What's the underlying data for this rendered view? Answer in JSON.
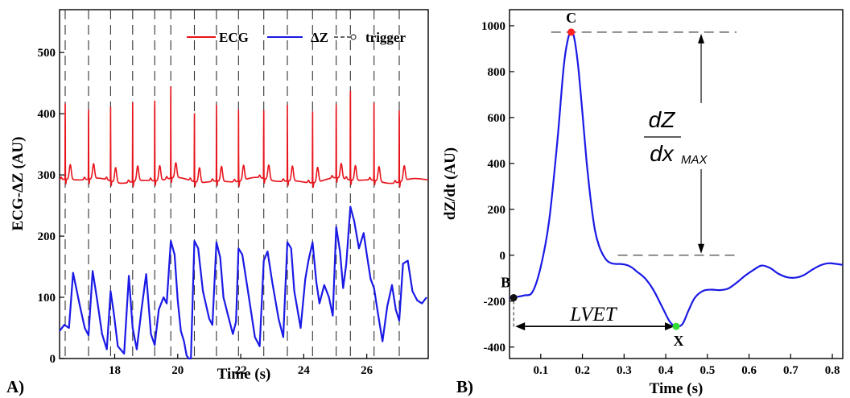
{
  "panels": {
    "a": "A)",
    "b": "B)"
  },
  "chart_data": [
    {
      "type": "line",
      "xlabel": "Time (s)",
      "ylabel": "ECG-ΔZ (AU)",
      "xlim": [
        16.25,
        27.95
      ],
      "ylim": [
        0,
        570
      ],
      "xticks": [
        18,
        20,
        22,
        24,
        26
      ],
      "yticks": [
        0,
        100,
        200,
        300,
        400,
        500
      ],
      "grid": false,
      "legend": {
        "placement": "top-right",
        "entries": [
          "ECG",
          "ΔZ",
          "trigger"
        ]
      },
      "colors": {
        "ECG": "#e8141c",
        "dZ": "#1a1ae6",
        "trigger": "#333333"
      },
      "triggers": [
        16.43,
        17.17,
        17.87,
        18.57,
        19.27,
        19.78,
        20.53,
        21.23,
        21.93,
        22.73,
        23.48,
        24.28,
        25.03,
        25.48,
        26.23,
        27.03
      ],
      "ecg_beats": [
        {
          "t": 16.43,
          "peak": 417
        },
        {
          "t": 17.17,
          "peak": 412
        },
        {
          "t": 17.87,
          "peak": 415
        },
        {
          "t": 18.57,
          "peak": 428
        },
        {
          "t": 19.27,
          "peak": 430
        },
        {
          "t": 19.78,
          "peak": 450
        },
        {
          "t": 20.53,
          "peak": 410
        },
        {
          "t": 21.23,
          "peak": 418
        },
        {
          "t": 21.93,
          "peak": 415
        },
        {
          "t": 22.73,
          "peak": 405
        },
        {
          "t": 23.48,
          "peak": 418
        },
        {
          "t": 24.28,
          "peak": 415
        },
        {
          "t": 25.03,
          "peak": 418
        },
        {
          "t": 25.48,
          "peak": 445
        },
        {
          "t": 26.23,
          "peak": 425
        },
        {
          "t": 27.03,
          "peak": 415
        }
      ],
      "series": [
        {
          "name": "ΔZ",
          "x": [
            16.25,
            16.4,
            16.55,
            16.68,
            16.9,
            17.05,
            17.17,
            17.3,
            17.43,
            17.6,
            17.75,
            17.87,
            17.97,
            18.1,
            18.3,
            18.45,
            18.57,
            18.7,
            18.85,
            19.0,
            19.15,
            19.27,
            19.4,
            19.55,
            19.65,
            19.78,
            19.9,
            20.0,
            20.1,
            20.2,
            20.28,
            20.35,
            20.42,
            20.53,
            20.65,
            20.8,
            21.0,
            21.1,
            21.23,
            21.35,
            21.45,
            21.6,
            21.75,
            21.85,
            21.93,
            22.05,
            22.2,
            22.45,
            22.6,
            22.73,
            22.85,
            23.0,
            23.2,
            23.35,
            23.48,
            23.6,
            23.7,
            23.9,
            24.05,
            24.15,
            24.28,
            24.4,
            24.5,
            24.65,
            24.8,
            24.92,
            25.03,
            25.15,
            25.25,
            25.35,
            25.48,
            25.6,
            25.75,
            25.9,
            26.0,
            26.12,
            26.23,
            26.35,
            26.5,
            26.65,
            26.8,
            26.92,
            27.03,
            27.15,
            27.3,
            27.45,
            27.6,
            27.75,
            27.9
          ],
          "y": [
            45,
            55,
            50,
            140,
            85,
            50,
            38,
            143,
            100,
            40,
            15,
            110,
            75,
            20,
            8,
            135,
            50,
            15,
            80,
            138,
            40,
            22,
            80,
            100,
            90,
            192,
            170,
            95,
            45,
            28,
            5,
            0,
            0,
            192,
            180,
            110,
            65,
            55,
            190,
            165,
            100,
            70,
            40,
            60,
            180,
            170,
            120,
            35,
            20,
            160,
            175,
            125,
            65,
            35,
            190,
            180,
            110,
            50,
            130,
            160,
            190,
            125,
            90,
            120,
            100,
            70,
            215,
            175,
            115,
            155,
            248,
            225,
            180,
            205,
            170,
            130,
            115,
            75,
            28,
            85,
            120,
            80,
            62,
            155,
            160,
            110,
            95,
            90,
            100
          ]
        }
      ]
    },
    {
      "type": "line",
      "xlabel": "Time (s)",
      "ylabel": "dZ/dt (AU)",
      "xlim": [
        0.025,
        0.825
      ],
      "ylim": [
        -450,
        1070
      ],
      "xticks": [
        0.1,
        0.2,
        0.3,
        0.4,
        0.5,
        0.6,
        0.7,
        0.8
      ],
      "yticks": [
        -400,
        -200,
        0,
        200,
        400,
        600,
        800,
        1000
      ],
      "grid": false,
      "color": "#1a1ae6",
      "series": [
        {
          "name": "",
          "x": [
            0.025,
            0.04,
            0.06,
            0.08,
            0.1,
            0.12,
            0.14,
            0.155,
            0.165,
            0.173,
            0.18,
            0.19,
            0.2,
            0.21,
            0.22,
            0.23,
            0.24,
            0.25,
            0.26,
            0.27,
            0.28,
            0.29,
            0.3,
            0.31,
            0.32,
            0.33,
            0.35,
            0.37,
            0.39,
            0.41,
            0.425,
            0.44,
            0.455,
            0.47,
            0.49,
            0.51,
            0.53,
            0.55,
            0.57,
            0.59,
            0.61,
            0.63,
            0.65,
            0.67,
            0.69,
            0.71,
            0.73,
            0.75,
            0.77,
            0.79,
            0.81,
            0.825
          ],
          "y": [
            -185,
            -182,
            -175,
            -160,
            -50,
            150,
            500,
            820,
            940,
            972,
            950,
            820,
            620,
            410,
            240,
            110,
            40,
            0,
            -25,
            -35,
            -38,
            -38,
            -40,
            -45,
            -55,
            -70,
            -100,
            -150,
            -220,
            -290,
            -310,
            -300,
            -240,
            -185,
            -155,
            -150,
            -152,
            -145,
            -120,
            -90,
            -65,
            -45,
            -55,
            -80,
            -95,
            -98,
            -88,
            -65,
            -45,
            -35,
            -38,
            -42
          ]
        }
      ],
      "points": [
        {
          "label": "C",
          "x": 0.173,
          "y": 972,
          "color": "#ff2020"
        },
        {
          "label": "B",
          "x": 0.035,
          "y": -185,
          "color": "#111111"
        },
        {
          "label": "X",
          "x": 0.425,
          "y": -310,
          "color": "#33dd33"
        }
      ],
      "annotations": {
        "interval_label": "LVET",
        "fraction_numerator": "dZ",
        "fraction_denominator": "dx",
        "fraction_subscript": "MAX"
      }
    }
  ]
}
